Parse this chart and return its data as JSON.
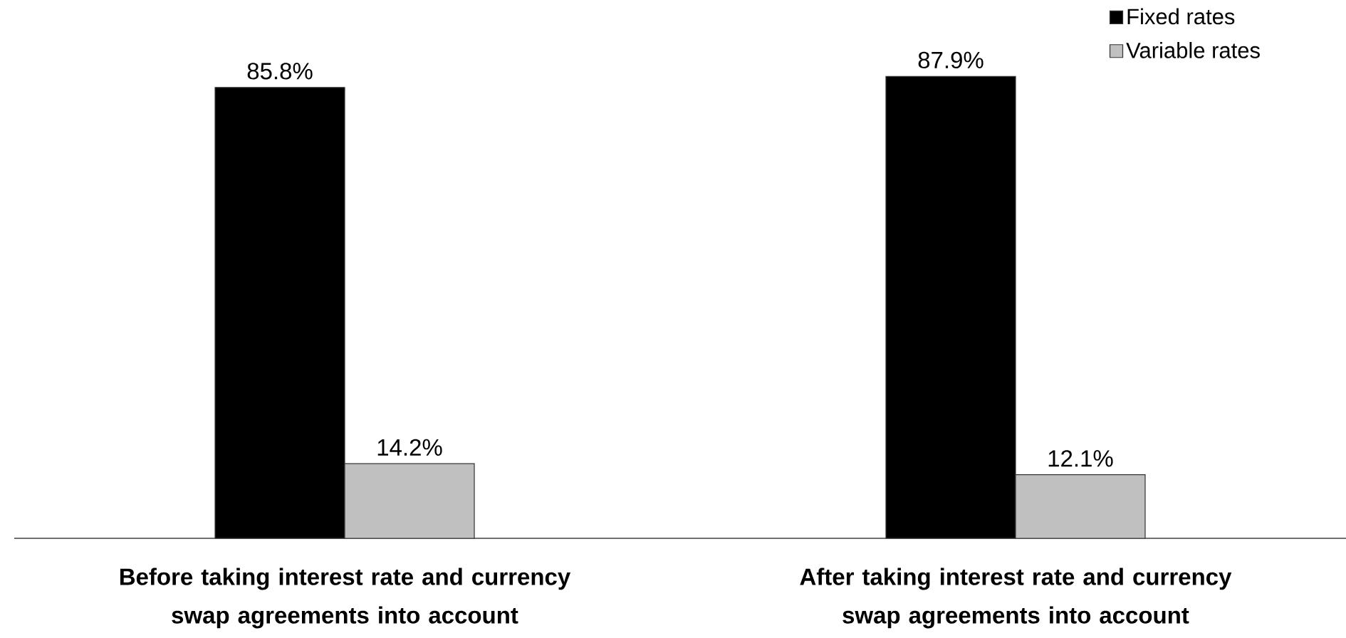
{
  "chart_data": {
    "type": "bar",
    "categories": [
      "Before taking interest rate and currency swap agreements into account",
      "After taking interest rate and currency swap agreements into account"
    ],
    "series": [
      {
        "name": "Fixed rates",
        "color": "#000000",
        "values": [
          85.8,
          87.9
        ],
        "value_labels": [
          "85.8%",
          "87.9%"
        ]
      },
      {
        "name": "Variable rates",
        "color": "#c0c0c0",
        "values": [
          14.2,
          12.1
        ],
        "value_labels": [
          "14.2%",
          "12.1%"
        ]
      }
    ],
    "ylim": [
      0,
      100
    ],
    "legend": "top right"
  }
}
